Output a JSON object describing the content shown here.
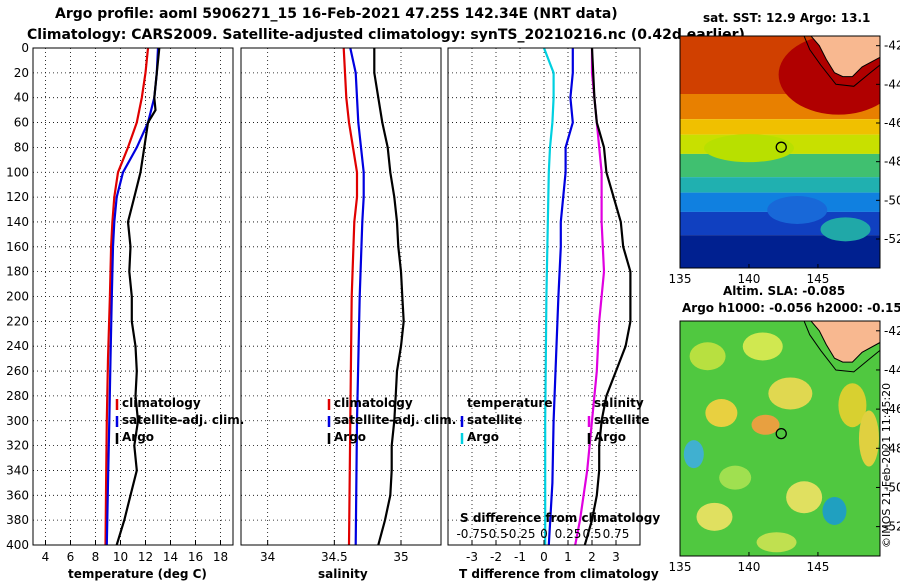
{
  "titles": {
    "line1": "Argo profile: aoml 5906271_15 16-Feb-2021 47.25S 142.34E (NRT data)",
    "line2": "Climatology: CARS2009. Satellite-adjusted climatology: synTS_20210216.nc (0.42d earlier)"
  },
  "colors": {
    "climatology": "#e00000",
    "satellite": "#0000e0",
    "argo": "#000000",
    "t_sat": "#00d0e0",
    "s_sat": "#e000e0"
  },
  "chart_data": [
    {
      "type": "line",
      "name": "temperature",
      "xlabel": "temperature (deg C)",
      "ylabel": "depth",
      "xlim": [
        3,
        19
      ],
      "ylim": [
        400,
        0
      ],
      "xticks": [
        4,
        6,
        8,
        10,
        12,
        14,
        16,
        18
      ],
      "yticks": [
        0,
        20,
        40,
        60,
        80,
        100,
        120,
        140,
        160,
        180,
        200,
        220,
        240,
        260,
        280,
        300,
        320,
        340,
        360,
        380,
        400
      ],
      "legend": [
        "climatology",
        "satellite-adj. clim.",
        "Argo"
      ],
      "series": [
        {
          "name": "climatology",
          "color": "#e00000",
          "depth": [
            0,
            20,
            40,
            60,
            80,
            100,
            120,
            140,
            160,
            200,
            250,
            300,
            350,
            400
          ],
          "values": [
            12.2,
            12.0,
            11.7,
            11.3,
            10.6,
            9.8,
            9.5,
            9.35,
            9.25,
            9.15,
            9.0,
            8.9,
            8.85,
            8.8
          ]
        },
        {
          "name": "satellite-adj. clim.",
          "color": "#0000e0",
          "depth": [
            0,
            20,
            40,
            60,
            80,
            100,
            120,
            140,
            160,
            200,
            250,
            300,
            350,
            400
          ],
          "values": [
            13.0,
            12.9,
            12.7,
            12.2,
            11.3,
            10.2,
            9.7,
            9.5,
            9.4,
            9.3,
            9.2,
            9.1,
            9.0,
            8.9
          ]
        },
        {
          "name": "Argo",
          "color": "#000000",
          "depth": [
            0,
            20,
            40,
            50,
            60,
            80,
            100,
            120,
            140,
            160,
            180,
            200,
            220,
            240,
            260,
            280,
            300,
            320,
            340,
            360,
            380,
            400
          ],
          "values": [
            13.1,
            12.9,
            12.7,
            12.8,
            12.2,
            11.9,
            11.6,
            11.1,
            10.6,
            10.8,
            10.7,
            10.9,
            10.9,
            11.2,
            11.3,
            11.2,
            11.4,
            11.1,
            11.3,
            10.8,
            10.3,
            9.7
          ]
        }
      ]
    },
    {
      "type": "line",
      "name": "salinity",
      "xlabel": "salinity",
      "xlim": [
        33.8,
        35.3
      ],
      "ylim": [
        400,
        0
      ],
      "xticks": [
        34,
        34.5,
        35
      ],
      "legend": [
        "climatology",
        "satellite-adj. clim.",
        "Argo"
      ],
      "series": [
        {
          "name": "climatology",
          "color": "#e00000",
          "depth": [
            0,
            20,
            40,
            60,
            80,
            100,
            120,
            140,
            200,
            300,
            400
          ],
          "values": [
            34.57,
            34.58,
            34.59,
            34.61,
            34.64,
            34.67,
            34.67,
            34.65,
            34.63,
            34.62,
            34.61
          ]
        },
        {
          "name": "satellite-adj. clim.",
          "color": "#0000e0",
          "depth": [
            0,
            20,
            40,
            60,
            80,
            100,
            120,
            140,
            200,
            300,
            400
          ],
          "values": [
            34.62,
            34.66,
            34.67,
            34.68,
            34.7,
            34.72,
            34.72,
            34.71,
            34.69,
            34.67,
            34.66
          ]
        },
        {
          "name": "Argo",
          "color": "#000000",
          "depth": [
            0,
            20,
            40,
            60,
            80,
            100,
            120,
            140,
            160,
            180,
            200,
            220,
            240,
            260,
            280,
            300,
            320,
            340,
            360,
            380,
            400
          ],
          "values": [
            34.8,
            34.8,
            34.83,
            34.86,
            34.9,
            34.92,
            34.95,
            34.97,
            34.98,
            35.0,
            35.01,
            35.02,
            35.0,
            34.97,
            34.96,
            34.95,
            34.93,
            34.93,
            34.92,
            34.88,
            34.83
          ]
        }
      ]
    },
    {
      "type": "line",
      "name": "difference",
      "xlabel": "T difference from climatology",
      "xlim": [
        -4,
        4
      ],
      "ylim": [
        400,
        0
      ],
      "xticks": [
        -3,
        -2,
        -1,
        0,
        1,
        2,
        3
      ],
      "top_axis_label": "S difference from climatology",
      "top_ticks": [
        "-0.75",
        "-0.5",
        "-0.25",
        "0",
        "0.25",
        "0.5",
        "0.75"
      ],
      "legend_left": [
        "temperature",
        "satellite",
        "Argo"
      ],
      "legend_right": [
        "salinity",
        "satellite",
        "Argo"
      ],
      "series": [
        {
          "name": "temperature satellite",
          "color": "#00d0e0",
          "depth": [
            0,
            20,
            40,
            60,
            80,
            100,
            200,
            300,
            400
          ],
          "values": [
            0.0,
            0.4,
            0.4,
            0.35,
            0.25,
            0.2,
            0.1,
            0.05,
            0.05
          ]
        },
        {
          "name": "temperature Argo",
          "color": "#0000e0",
          "depth": [
            0,
            20,
            40,
            60,
            80,
            100,
            120,
            140,
            160,
            200,
            250,
            300,
            350,
            400
          ],
          "values": [
            1.2,
            1.2,
            1.1,
            1.2,
            0.9,
            0.9,
            0.8,
            0.7,
            0.7,
            0.6,
            0.5,
            0.4,
            0.35,
            0.2
          ]
        },
        {
          "name": "salinity satellite",
          "color": "#e000e0",
          "depth": [
            0,
            20,
            40,
            60,
            80,
            100,
            140,
            180,
            220,
            260,
            300,
            340,
            380,
            400
          ],
          "values": [
            2.0,
            2.0,
            2.1,
            2.2,
            2.3,
            2.4,
            2.4,
            2.5,
            2.3,
            2.2,
            2.0,
            1.8,
            1.5,
            1.3
          ]
        },
        {
          "name": "salinity Argo",
          "color": "#000000",
          "depth": [
            0,
            40,
            60,
            80,
            100,
            120,
            140,
            160,
            180,
            200,
            220,
            240,
            260,
            280,
            300,
            320,
            340,
            360,
            380,
            400
          ],
          "values": [
            2.0,
            2.1,
            2.2,
            2.5,
            2.6,
            2.9,
            3.2,
            3.3,
            3.6,
            3.6,
            3.6,
            3.4,
            3.0,
            2.6,
            2.4,
            2.3,
            2.3,
            2.2,
            2.0,
            1.7
          ]
        }
      ]
    },
    {
      "type": "heatmap",
      "name": "sst-map",
      "title": "sat. SST: 12.9 Argo: 13.1",
      "xlim": [
        135,
        149.5
      ],
      "ylim": [
        -53.5,
        -41.5
      ],
      "xticks": [
        135,
        140,
        145
      ],
      "yticks": [
        -42,
        -44,
        -46,
        -48,
        -50,
        -52
      ],
      "marker": {
        "lon": 142.34,
        "lat": -47.25
      }
    },
    {
      "type": "heatmap",
      "name": "sla-map",
      "title_line1": "Altim. SLA: -0.085",
      "title_line2": "Argo h1000: -0.056 h2000: -0.15",
      "xlim": [
        135,
        149.5
      ],
      "ylim": [
        -53.5,
        -41.5
      ],
      "xticks": [
        135,
        140,
        145
      ],
      "yticks": [
        -42,
        -44,
        -46,
        -48,
        -50,
        -52
      ],
      "marker": {
        "lon": 142.34,
        "lat": -47.25
      }
    }
  ],
  "credit": "©IMOS 21-Feb-2021 11:45:20"
}
